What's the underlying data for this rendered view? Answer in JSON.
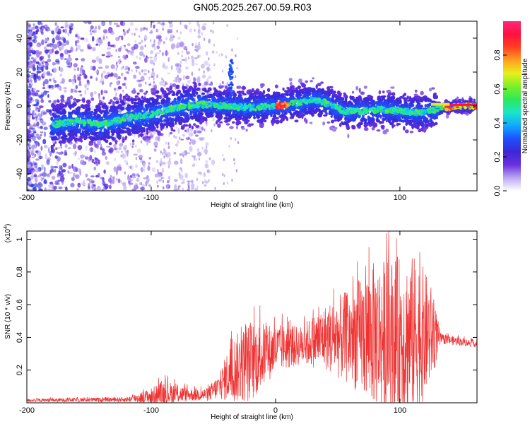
{
  "title": "GN05.2025.267.00.59.R03",
  "chart_data": [
    {
      "type": "heatmap",
      "name": "spectrogram",
      "xlabel": "Height of straight line (km)",
      "ylabel": "Frequency (Hz)",
      "xlim": [
        -200,
        162
      ],
      "ylim": [
        -50,
        50
      ],
      "xticks": [
        -200,
        -100,
        0,
        100
      ],
      "yticks": [
        -40,
        -20,
        0,
        20,
        40
      ],
      "colorbar": {
        "label": "Normalized spectral amplitude",
        "range": [
          0,
          1
        ],
        "ticks": [
          "0.0",
          "0.2",
          "0.4",
          "0.6",
          "0.8"
        ],
        "tick_values": [
          0.0,
          0.2,
          0.4,
          0.6,
          0.8
        ],
        "colors": [
          "#ffffff",
          "#b9a7f2",
          "#6a2fe0",
          "#3c28d6",
          "#1f50ff",
          "#11aaff",
          "#19e6c8",
          "#2ee85a",
          "#7af02a",
          "#e8f01a",
          "#ffa020",
          "#ff4020",
          "#ff1040",
          "#ff2a78"
        ]
      },
      "ridge": [
        {
          "x": -200,
          "y": -12
        },
        {
          "x": -180,
          "y": -11
        },
        {
          "x": -160,
          "y": -9
        },
        {
          "x": -140,
          "y": -11
        },
        {
          "x": -120,
          "y": -7
        },
        {
          "x": -100,
          "y": -5
        },
        {
          "x": -80,
          "y": -1
        },
        {
          "x": -60,
          "y": 1
        },
        {
          "x": -40,
          "y": 0
        },
        {
          "x": -20,
          "y": -1
        },
        {
          "x": 0,
          "y": 0
        },
        {
          "x": 20,
          "y": 2
        },
        {
          "x": 30,
          "y": 4
        },
        {
          "x": 40,
          "y": 2
        },
        {
          "x": 55,
          "y": -3
        },
        {
          "x": 70,
          "y": -3
        },
        {
          "x": 85,
          "y": -2
        },
        {
          "x": 100,
          "y": -3
        },
        {
          "x": 115,
          "y": -4
        },
        {
          "x": 130,
          "y": -2
        },
        {
          "x": 145,
          "y": 0
        },
        {
          "x": 162,
          "y": 0
        }
      ]
    },
    {
      "type": "line",
      "name": "snr",
      "xlabel": "Height of straight line (km)",
      "ylabel": "SNR (10 * v/v)",
      "yunit": "(x10",
      "yunit_exp": "4",
      "yunit_close": ")",
      "xlim": [
        -200,
        162
      ],
      "ylim": [
        0,
        1.05
      ],
      "xticks": [
        -200,
        -100,
        0,
        100
      ],
      "yticks": [
        0.2,
        0.4,
        0.6,
        0.8,
        1
      ],
      "ytick_labels": [
        "0.2",
        "0.4",
        "0.6",
        "0.8",
        "1"
      ],
      "color": "#ee3333",
      "envelope": [
        {
          "x": -200,
          "base": 0.015,
          "amp": 0.01
        },
        {
          "x": -120,
          "base": 0.02,
          "amp": 0.015
        },
        {
          "x": -100,
          "base": 0.04,
          "amp": 0.05
        },
        {
          "x": -90,
          "base": 0.06,
          "amp": 0.08
        },
        {
          "x": -70,
          "base": 0.05,
          "amp": 0.04
        },
        {
          "x": -55,
          "base": 0.05,
          "amp": 0.04
        },
        {
          "x": -45,
          "base": 0.1,
          "amp": 0.08
        },
        {
          "x": -35,
          "base": 0.2,
          "amp": 0.2
        },
        {
          "x": -20,
          "base": 0.25,
          "amp": 0.25
        },
        {
          "x": 0,
          "base": 0.33,
          "amp": 0.15
        },
        {
          "x": 20,
          "base": 0.35,
          "amp": 0.12
        },
        {
          "x": 40,
          "base": 0.4,
          "amp": 0.2
        },
        {
          "x": 60,
          "base": 0.4,
          "amp": 0.3
        },
        {
          "x": 80,
          "base": 0.42,
          "amp": 0.45
        },
        {
          "x": 100,
          "base": 0.4,
          "amp": 0.5
        },
        {
          "x": 115,
          "base": 0.42,
          "amp": 0.48
        },
        {
          "x": 125,
          "base": 0.42,
          "amp": 0.3
        },
        {
          "x": 133,
          "base": 0.39,
          "amp": 0.03
        },
        {
          "x": 162,
          "base": 0.36,
          "amp": 0.02
        }
      ]
    }
  ]
}
